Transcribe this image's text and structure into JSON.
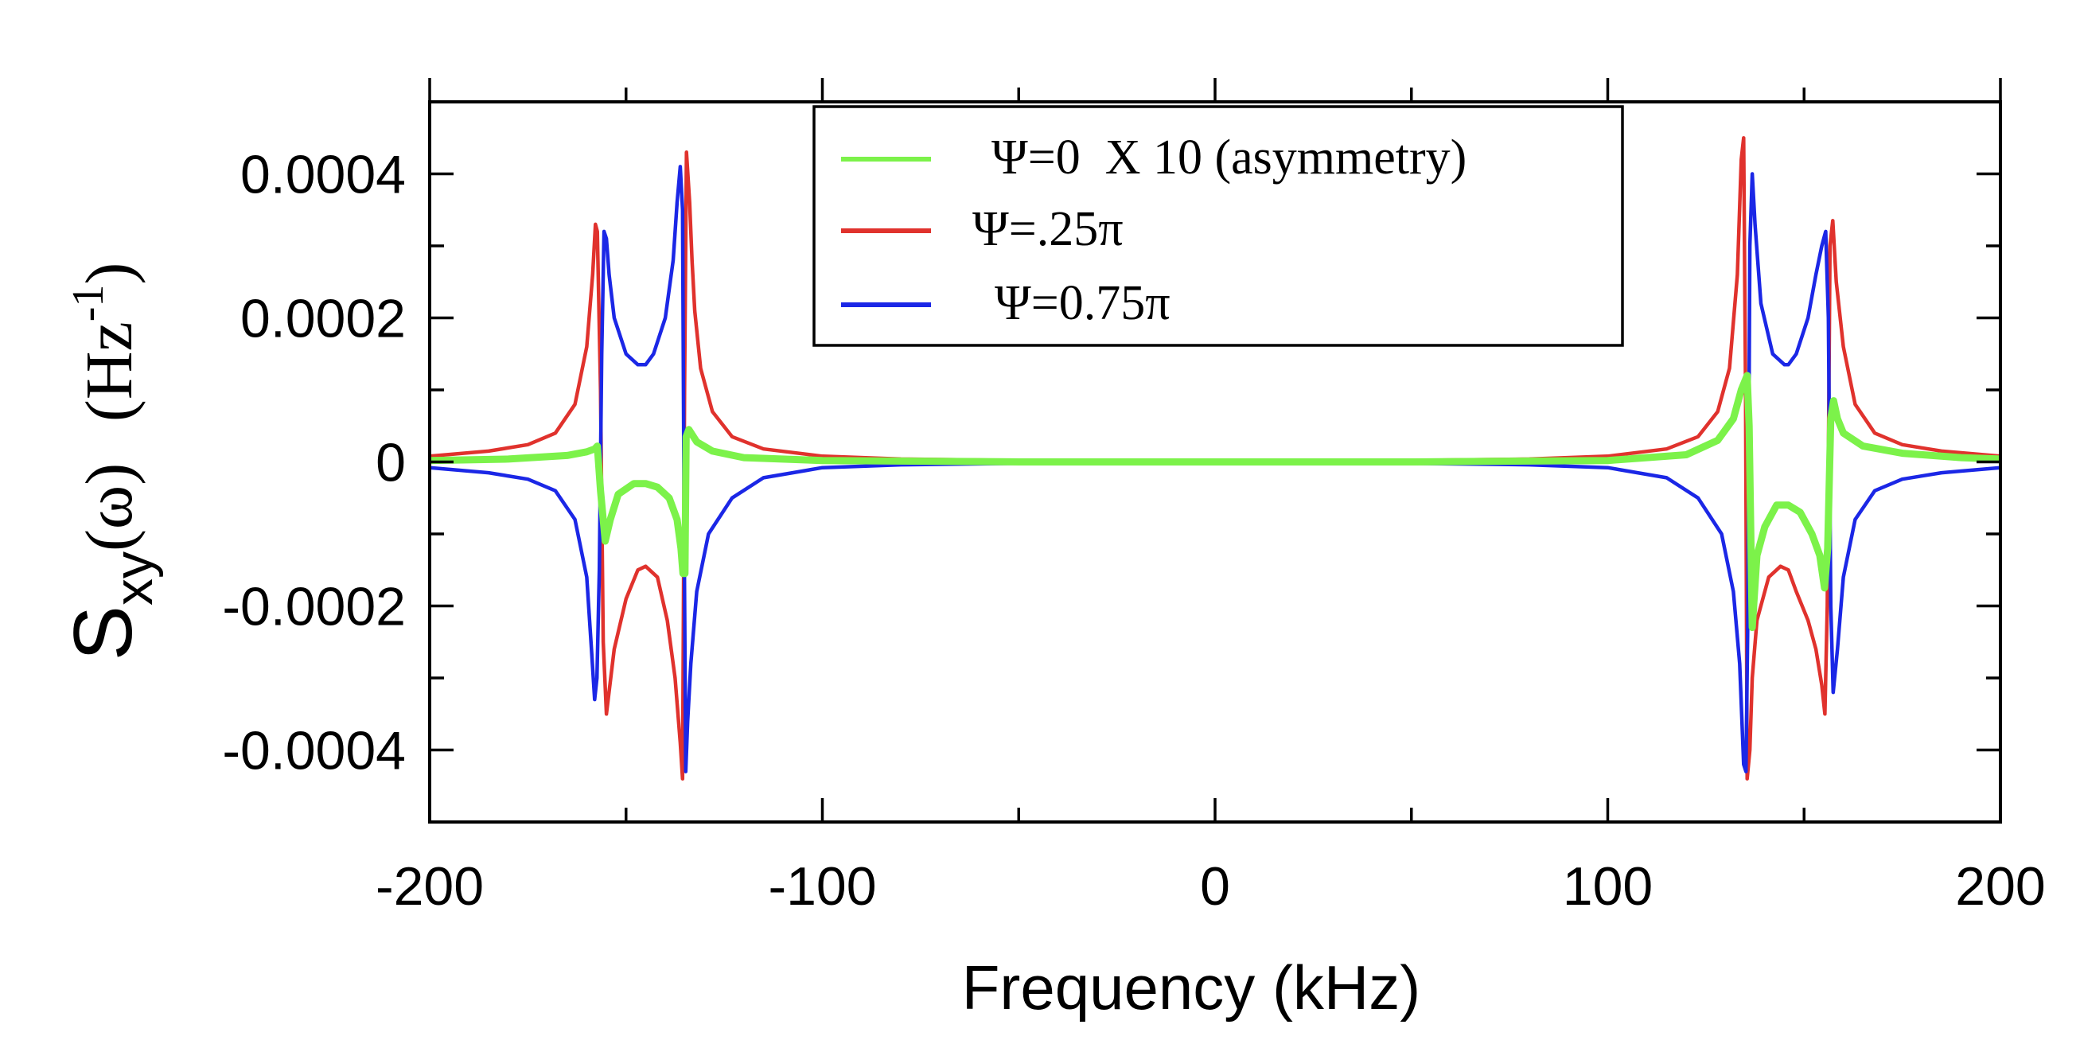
{
  "chart_data": {
    "type": "line",
    "title": "",
    "xlabel": "Frequency (kHz)",
    "ylabel": {
      "base": "S",
      "sub": "xy",
      "arg": "(ω)",
      "unit": "(Hz",
      "unit_sup": "-1",
      "unit_close": ")"
    },
    "xlim": [
      -200,
      200
    ],
    "ylim": [
      -0.0005,
      0.0005
    ],
    "x_ticks": [
      -200,
      -100,
      0,
      100,
      200
    ],
    "x_tick_labels": [
      "-200",
      "-100",
      "0",
      "100",
      "200"
    ],
    "x_minor_ticks": [
      -150,
      -50,
      50,
      150
    ],
    "y_ticks": [
      -0.0004,
      -0.0002,
      0,
      0.0002,
      0.0004
    ],
    "y_tick_labels": [
      "-0.0004",
      "-0.0002",
      "0",
      "0.0002",
      "0.0004"
    ],
    "y_minor_ticks": [
      -0.0005,
      -0.0003,
      -0.0001,
      0.0001,
      0.0003,
      0.0005
    ],
    "grid": false,
    "legend_position": "top-center",
    "series": [
      {
        "name": "Ψ=0  X 10 (asymmetry)",
        "color": "#7cf24a",
        "x": [
          -200,
          -180,
          -165,
          -160,
          -158,
          -157.3,
          -156.5,
          -155.3,
          -154,
          -152,
          -148,
          -145,
          -142,
          -139,
          -137,
          -136,
          -135.5,
          -135,
          -134.7,
          -134,
          -132,
          -128,
          -120,
          -100,
          -50,
          0,
          50,
          100,
          120,
          128,
          132,
          134,
          135.5,
          136,
          136.8,
          138,
          140,
          143,
          146,
          149,
          152,
          154,
          155.2,
          156,
          156.8,
          157.5,
          158.5,
          160,
          165,
          175,
          190,
          200
        ],
        "y": [
          2e-06,
          4e-06,
          9e-06,
          1.4e-05,
          1.8e-05,
          2.2e-05,
          -4e-05,
          -0.00011,
          -8e-05,
          -4.5e-05,
          -3e-05,
          -3e-05,
          -3.5e-05,
          -5e-05,
          -8e-05,
          -0.00012,
          -0.000155,
          -0.000155,
          3.5e-05,
          4.5e-05,
          2.8e-05,
          1.5e-05,
          6e-06,
          2e-06,
          0,
          0,
          0,
          2e-06,
          1e-05,
          3e-05,
          6e-05,
          0.0001,
          0.00012,
          5e-05,
          -0.00023,
          -0.00013,
          -9e-05,
          -6e-05,
          -6e-05,
          -7e-05,
          -0.0001,
          -0.00013,
          -0.000175,
          -0.00012,
          6e-05,
          8.5e-05,
          6e-05,
          4e-05,
          2.2e-05,
          1.2e-05,
          6e-06,
          4e-06
        ]
      },
      {
        "name": "Ψ=.25π",
        "color": "#e0322d",
        "x": [
          -200,
          -185,
          -175,
          -168,
          -163,
          -160,
          -158.5,
          -157.8,
          -157.3,
          -156.5,
          -155.8,
          -155,
          -153,
          -150,
          -147,
          -145,
          -142,
          -139.5,
          -137.5,
          -136.2,
          -135.6,
          -135.1,
          -134.6,
          -133.8,
          -133.2,
          -132.5,
          -131,
          -128,
          -123,
          -115,
          -100,
          -80,
          -50,
          0,
          50,
          80,
          100,
          115,
          123,
          128,
          131,
          133,
          134,
          134.6,
          135.1,
          135.5,
          136.2,
          136.8,
          138,
          141,
          144,
          146,
          148,
          151,
          153,
          154.5,
          155.3,
          155.9,
          156.6,
          157.3,
          158.2,
          160,
          163,
          168,
          175,
          185,
          200
        ],
        "y": [
          8e-06,
          1.5e-05,
          2.4e-05,
          4e-05,
          8e-05,
          0.00016,
          0.00026,
          0.00033,
          0.00032,
          0.0001,
          -0.00025,
          -0.00035,
          -0.00026,
          -0.00019,
          -0.00015,
          -0.000145,
          -0.00016,
          -0.00022,
          -0.0003,
          -0.00039,
          -0.00044,
          0.0001,
          0.00043,
          0.00036,
          0.00028,
          0.00021,
          0.00013,
          7e-05,
          3.5e-05,
          1.8e-05,
          8e-06,
          4e-06,
          2e-06,
          0,
          2e-06,
          4e-06,
          8e-06,
          1.8e-05,
          3.5e-05,
          7e-05,
          0.00013,
          0.00026,
          0.00042,
          0.00045,
          0.0001,
          -0.00044,
          -0.0004,
          -0.0003,
          -0.00022,
          -0.00016,
          -0.000145,
          -0.00015,
          -0.00018,
          -0.00022,
          -0.00026,
          -0.00031,
          -0.00035,
          -0.0002,
          0.0003,
          0.000335,
          0.00025,
          0.00016,
          8e-05,
          4e-05,
          2.4e-05,
          1.5e-05,
          8e-06
        ]
      },
      {
        "name": "Ψ=0.75π",
        "color": "#1b27e6",
        "x": [
          -200,
          -185,
          -175,
          -168,
          -163,
          -160,
          -158.8,
          -158,
          -157.4,
          -156.8,
          -156.2,
          -155.6,
          -155,
          -154.3,
          -153,
          -150,
          -147,
          -145,
          -143,
          -140,
          -138,
          -137,
          -136.2,
          -135.6,
          -135.2,
          -134.8,
          -134.3,
          -133.5,
          -132,
          -129,
          -123,
          -115,
          -100,
          -80,
          -50,
          0,
          50,
          80,
          100,
          115,
          123,
          129,
          132,
          133.6,
          134.6,
          135.2,
          135.7,
          136.2,
          136.8,
          137.5,
          139,
          142,
          145,
          146,
          148,
          151,
          153,
          154.5,
          155.5,
          156.2,
          156.8,
          157.4,
          158.5,
          160,
          163,
          168,
          175,
          185,
          200
        ],
        "y": [
          -8e-06,
          -1.5e-05,
          -2.4e-05,
          -4e-05,
          -8e-05,
          -0.00016,
          -0.00026,
          -0.00033,
          -0.0003,
          -0.00015,
          0.00015,
          0.00032,
          0.00031,
          0.00026,
          0.0002,
          0.00015,
          0.000135,
          0.000135,
          0.00015,
          0.0002,
          0.00028,
          0.00036,
          0.00041,
          0.00035,
          -0.0001,
          -0.00043,
          -0.00036,
          -0.00028,
          -0.00018,
          -0.0001,
          -5e-05,
          -2.2e-05,
          -8e-06,
          -4e-06,
          -2e-06,
          0,
          -2e-06,
          -4e-06,
          -8e-06,
          -2.2e-05,
          -5e-05,
          -0.0001,
          -0.00018,
          -0.00028,
          -0.00042,
          -0.00043,
          -0.0002,
          0.0003,
          0.0004,
          0.00033,
          0.00022,
          0.00015,
          0.000135,
          0.000135,
          0.00015,
          0.0002,
          0.00026,
          0.0003,
          0.00032,
          0.0002,
          -0.0002,
          -0.00032,
          -0.00026,
          -0.00016,
          -8e-05,
          -4e-05,
          -2.4e-05,
          -1.5e-05,
          -8e-06
        ]
      }
    ]
  }
}
